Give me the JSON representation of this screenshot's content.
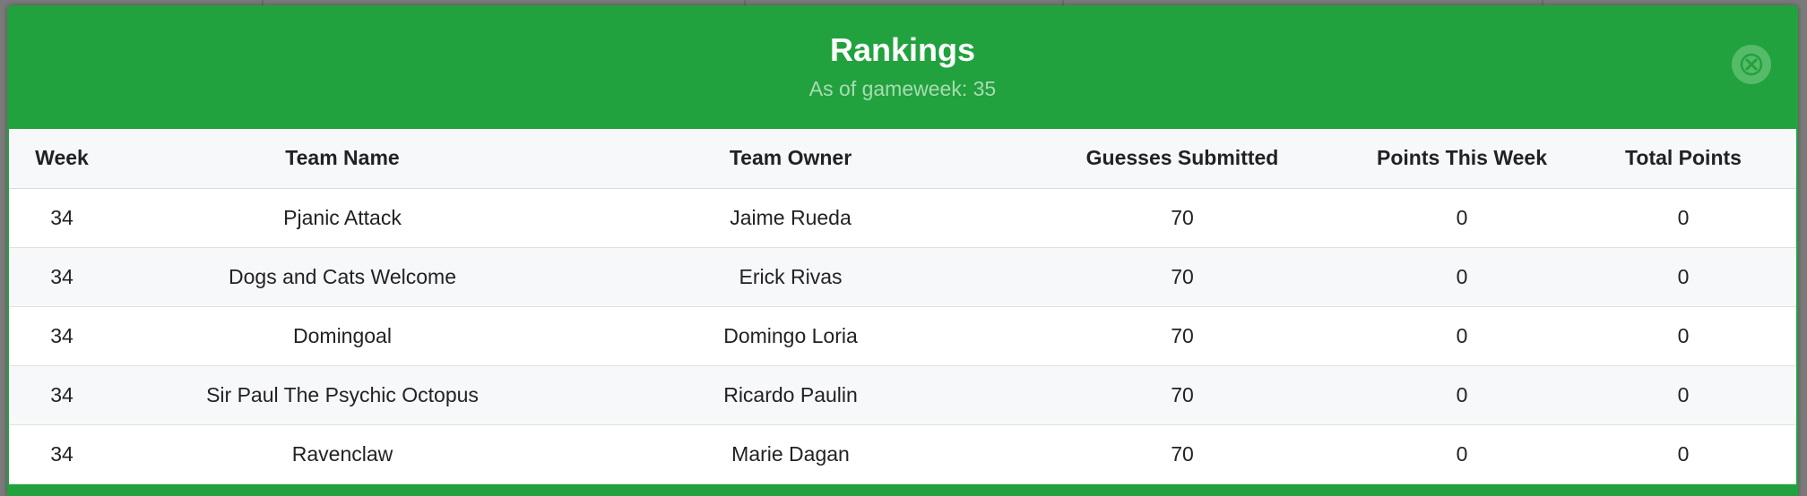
{
  "modal": {
    "title": "Rankings",
    "subtitle": "As of gameweek: 35",
    "close_icon": "close-icon",
    "accent_color": "#21a23e"
  },
  "table": {
    "columns": [
      "Week",
      "Team Name",
      "Team Owner",
      "Guesses Submitted",
      "Points This Week",
      "Total Points"
    ],
    "rows": [
      [
        "34",
        "Pjanic Attack",
        "Jaime Rueda",
        "70",
        "0",
        "0"
      ],
      [
        "34",
        "Dogs and Cats Welcome",
        "Erick Rivas",
        "70",
        "0",
        "0"
      ],
      [
        "34",
        "Domingoal",
        "Domingo Loria",
        "70",
        "0",
        "0"
      ],
      [
        "34",
        "Sir Paul The Psychic Octopus",
        "Ricardo Paulin",
        "70",
        "0",
        "0"
      ],
      [
        "34",
        "Ravenclaw",
        "Marie Dagan",
        "70",
        "0",
        "0"
      ]
    ]
  }
}
